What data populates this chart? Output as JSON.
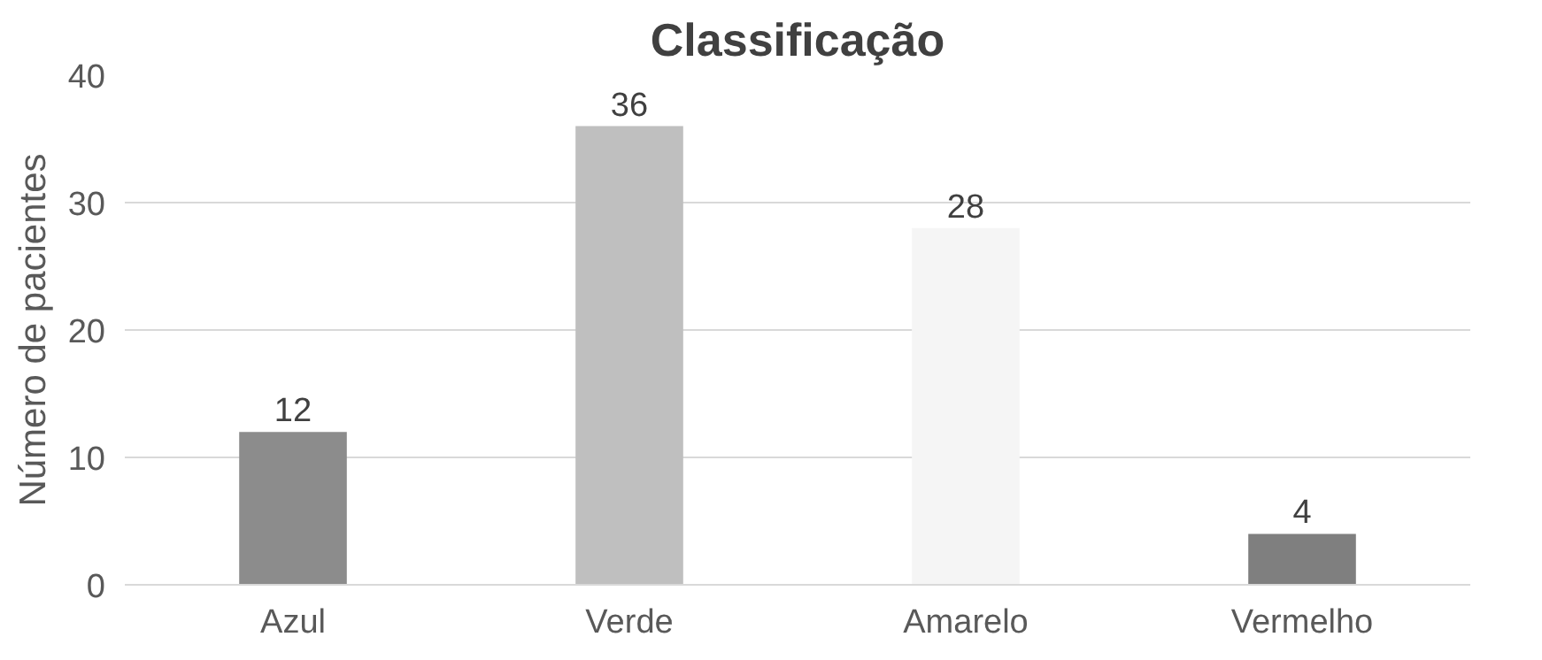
{
  "chart_data": {
    "type": "bar",
    "title": "Classificação",
    "ylabel": "Número de pacientes",
    "categories": [
      "Azul",
      "Verde",
      "Amarelo",
      "Vermelho"
    ],
    "values": [
      12,
      36,
      28,
      4
    ],
    "colors": [
      "#8c8c8c",
      "#bfbfbf",
      "#f5f5f5",
      "#7f7f7f"
    ],
    "ylim": [
      0,
      40
    ],
    "yticks": [
      0,
      10,
      20,
      30,
      40
    ],
    "grid": "y",
    "data_labels": true
  }
}
